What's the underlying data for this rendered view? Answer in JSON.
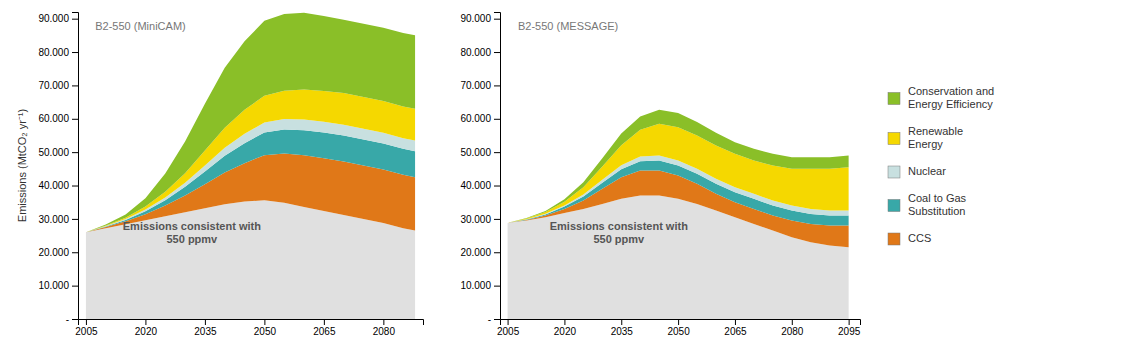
{
  "chart_data": [
    {
      "type": "area",
      "stacked": true,
      "title": "B2-550 (MiniCAM)",
      "ylabel": "Emissions (MtCO₂ yr⁻¹)",
      "annotation": "Emissions consistent with\n550 ppmv",
      "x": [
        2005,
        2010,
        2015,
        2020,
        2025,
        2030,
        2035,
        2040,
        2045,
        2050,
        2055,
        2060,
        2065,
        2070,
        2075,
        2080,
        2085,
        2088
      ],
      "series": [
        {
          "color": "#e0e0e0",
          "values": [
            26000,
            27200,
            28400,
            29600,
            30800,
            32000,
            33200,
            34400,
            35200,
            35600,
            34800,
            33600,
            32400,
            31200,
            30000,
            28800,
            27200,
            26500
          ]
        },
        {
          "color": "#e07818",
          "values": [
            0,
            400,
            900,
            1800,
            3200,
            5000,
            7200,
            9500,
            11500,
            13500,
            14800,
            15500,
            15800,
            16000,
            16000,
            16000,
            16000,
            16000
          ]
        },
        {
          "color": "#38a8a8",
          "values": [
            0,
            150,
            400,
            900,
            1600,
            2600,
            3800,
            5000,
            6000,
            6800,
            7200,
            7500,
            7700,
            7800,
            7800,
            7800,
            7800,
            7800
          ]
        },
        {
          "color": "#c8e0e0",
          "values": [
            0,
            100,
            250,
            500,
            800,
            1200,
            1800,
            2400,
            2800,
            3000,
            3100,
            3200,
            3200,
            3200,
            3200,
            3200,
            3200,
            3200
          ]
        },
        {
          "color": "#f5d800",
          "values": [
            0,
            150,
            400,
            900,
            1700,
            2900,
            4500,
            6000,
            7200,
            8000,
            8500,
            9000,
            9200,
            9500,
            9500,
            9500,
            9500,
            9500
          ]
        },
        {
          "color": "#8abf28",
          "values": [
            0,
            300,
            1000,
            2500,
            5500,
            9500,
            14000,
            18000,
            20500,
            22500,
            23000,
            23000,
            22500,
            22000,
            22000,
            22000,
            22000,
            22000
          ]
        }
      ],
      "xlim": [
        2003,
        2090
      ],
      "xticks": [
        2005,
        2020,
        2035,
        2050,
        2065,
        2080
      ],
      "ylim": [
        0,
        92000
      ],
      "yticks": [
        {
          "value": 0,
          "label": "-"
        },
        {
          "value": 10000,
          "label": "10.000"
        },
        {
          "value": 20000,
          "label": "20.000"
        },
        {
          "value": 30000,
          "label": "30.000"
        },
        {
          "value": 40000,
          "label": "40.000"
        },
        {
          "value": 50000,
          "label": "50.000"
        },
        {
          "value": 60000,
          "label": "60.000"
        },
        {
          "value": 70000,
          "label": "70.000"
        },
        {
          "value": 80000,
          "label": "80.000"
        },
        {
          "value": 90000,
          "label": "90.000"
        }
      ]
    },
    {
      "type": "area",
      "stacked": true,
      "title": "B2-550 (MESSAGE)",
      "annotation": "Emissions consistent with\n550 ppmv",
      "legend": "right",
      "x": [
        2005,
        2010,
        2015,
        2020,
        2025,
        2030,
        2035,
        2040,
        2045,
        2050,
        2055,
        2060,
        2065,
        2070,
        2075,
        2080,
        2085,
        2090,
        2095
      ],
      "series": [
        {
          "color": "#e0e0e0",
          "values": [
            28800,
            29500,
            30500,
            31800,
            33000,
            34500,
            36000,
            37000,
            37000,
            36000,
            34500,
            32500,
            30500,
            28500,
            26500,
            24500,
            23000,
            22000,
            21500
          ]
        },
        {
          "name": "CCS",
          "color": "#e07818",
          "values": [
            0,
            200,
            500,
            1200,
            2500,
            4500,
            6500,
            7500,
            7500,
            7000,
            6000,
            5000,
            4500,
            4500,
            4500,
            5000,
            5500,
            6000,
            6500
          ]
        },
        {
          "name": "Coal to Gas\nSubstitution",
          "color": "#38a8a8",
          "values": [
            0,
            150,
            350,
            700,
            1200,
            1800,
            2400,
            2800,
            3000,
            3000,
            3000,
            3000,
            3000,
            3000,
            3000,
            3000,
            3000,
            3000,
            3000
          ]
        },
        {
          "name": "Nuclear",
          "color": "#c8e0e0",
          "values": [
            0,
            80,
            180,
            350,
            600,
            900,
            1200,
            1400,
            1500,
            1500,
            1500,
            1500,
            1500,
            1500,
            1500,
            1500,
            1500,
            1500,
            1500
          ]
        },
        {
          "name": "Renewable\nEnergy",
          "color": "#f5d800",
          "values": [
            0,
            200,
            500,
            1100,
            2200,
            4000,
            6000,
            8000,
            9500,
            10000,
            10000,
            10000,
            10000,
            10000,
            10500,
            11000,
            12000,
            12500,
            13000
          ]
        },
        {
          "name": "Conservation and\nEnergy Efficiency",
          "color": "#8abf28",
          "values": [
            0,
            100,
            300,
            700,
            1500,
            2500,
            3500,
            4000,
            4200,
            4200,
            4000,
            3800,
            3500,
            3500,
            3500,
            3500,
            3500,
            3500,
            3500
          ]
        }
      ],
      "xlim": [
        2003,
        2098
      ],
      "xticks": [
        2005,
        2020,
        2035,
        2050,
        2065,
        2080,
        2095
      ],
      "ylim": [
        0,
        92000
      ],
      "yticks": [
        {
          "value": 0,
          "label": "-"
        },
        {
          "value": 10000,
          "label": "10.000"
        },
        {
          "value": 20000,
          "label": "20.000"
        },
        {
          "value": 30000,
          "label": "30.000"
        },
        {
          "value": 40000,
          "label": "40.000"
        },
        {
          "value": 50000,
          "label": "50.000"
        },
        {
          "value": 60000,
          "label": "60.000"
        },
        {
          "value": 70000,
          "label": "70.000"
        },
        {
          "value": 80000,
          "label": "80.000"
        },
        {
          "value": 90000,
          "label": "90.000"
        }
      ]
    }
  ]
}
